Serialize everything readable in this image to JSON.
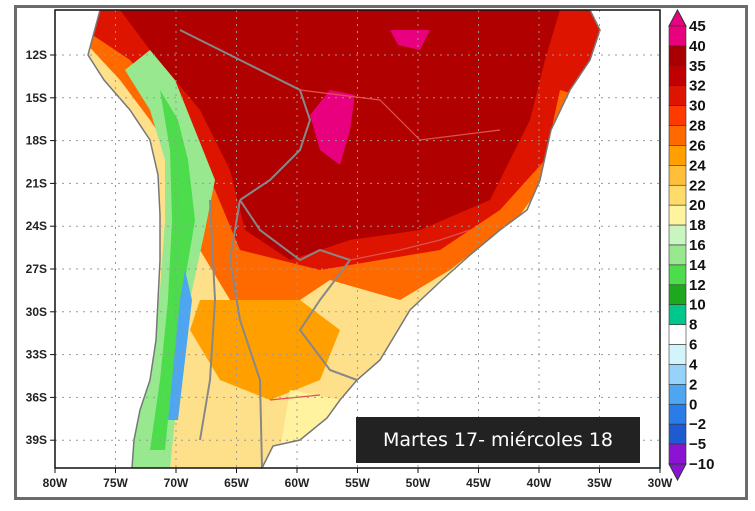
{
  "map": {
    "lat_labels": [
      "12S",
      "15S",
      "18S",
      "21S",
      "24S",
      "27S",
      "30S",
      "33S",
      "36S",
      "39S"
    ],
    "lon_labels": [
      "80W",
      "75W",
      "70W",
      "65W",
      "60W",
      "55W",
      "50W",
      "45W",
      "40W",
      "35W",
      "30W"
    ],
    "overlay_title": "Martes 17- miércoles 18"
  },
  "colorbar": {
    "labels": [
      "45",
      "40",
      "35",
      "32",
      "30",
      "28",
      "26",
      "24",
      "22",
      "20",
      "18",
      "16",
      "14",
      "12",
      "10",
      "8",
      "6",
      "4",
      "2",
      "0",
      "−2",
      "−5",
      "−10"
    ],
    "colors": [
      "#e8007f",
      "#a80000",
      "#c00000",
      "#dd1500",
      "#ff3a00",
      "#ff6a00",
      "#ffa000",
      "#ffbf3a",
      "#ffdc6a",
      "#fff3a0",
      "#c8f5c0",
      "#98e890",
      "#4cdc4c",
      "#1ea81e",
      "#00c88c",
      "#ffffff",
      "#d2f4fa",
      "#96d2fa",
      "#4ea6f0",
      "#2a7ce8",
      "#1e5ad2",
      "#8a14d2"
    ]
  }
}
